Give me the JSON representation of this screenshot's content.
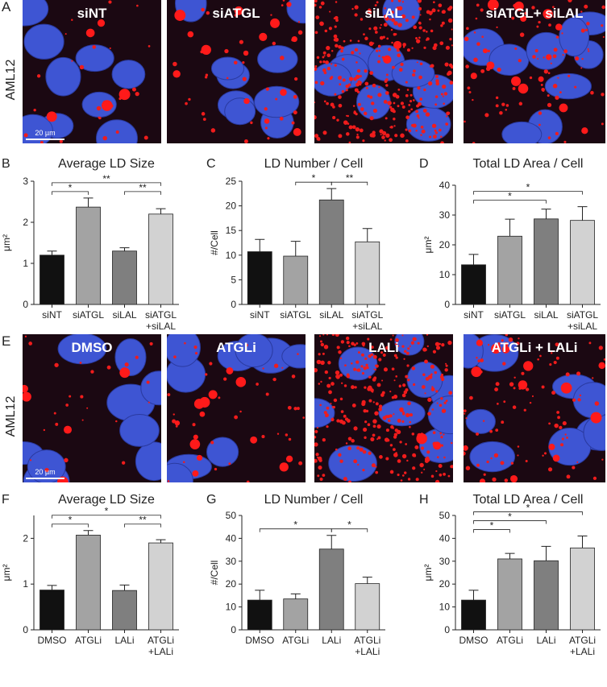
{
  "images": [
    {
      "panel_label": "A",
      "row_label": "AML12",
      "labels": [
        "siNT",
        "siATGL",
        "siLAL",
        "siATGL+ siLAL"
      ],
      "scale_bar": "20 µm"
    },
    {
      "panel_label": "E",
      "row_label": "AML12",
      "labels": [
        "DMSO",
        "ATGLi",
        "LALi",
        "ATGLi + LALi"
      ],
      "scale_bar": "20 µm"
    }
  ],
  "chart_data": [
    {
      "type": "bar",
      "panel_label": "B",
      "title": "Average LD Size",
      "ylabel": "μm²",
      "categories": [
        "siNT",
        "siATGL",
        "siLAL",
        [
          "siATGL",
          "+siLAL"
        ]
      ],
      "values": [
        1.2,
        2.37,
        1.3,
        2.2
      ],
      "errors": [
        0.1,
        0.22,
        0.08,
        0.13
      ],
      "colors": [
        "#111111",
        "#a3a3a3",
        "#7f7f7f",
        "#d2d2d2"
      ],
      "ylim": [
        0,
        3
      ],
      "yticks": [
        0,
        1,
        2,
        3
      ],
      "brackets": [
        {
          "label": "*",
          "between": [
            "siNT",
            "siATGL"
          ]
        },
        {
          "label": "**",
          "between": [
            "siLAL",
            [
              "siATGL",
              "+siLAL"
            ]
          ]
        },
        {
          "label": "**",
          "between": [
            "siNT",
            [
              "siATGL",
              "+siLAL"
            ]
          ]
        }
      ]
    },
    {
      "type": "bar",
      "panel_label": "C",
      "title": "LD Number / Cell",
      "ylabel": "#/Cell",
      "categories": [
        "siNT",
        "siATGL",
        "siLAL",
        [
          "siATGL",
          "+siLAL"
        ]
      ],
      "values": [
        10.7,
        9.8,
        21.2,
        12.7
      ],
      "errors": [
        2.5,
        3.0,
        2.3,
        2.7
      ],
      "colors": [
        "#111111",
        "#a3a3a3",
        "#7f7f7f",
        "#d2d2d2"
      ],
      "ylim": [
        0,
        25
      ],
      "yticks": [
        0,
        5,
        10,
        15,
        20,
        25
      ],
      "brackets": [
        {
          "label": "*",
          "between": [
            "siATGL",
            "siLAL"
          ]
        },
        {
          "label": "**",
          "between": [
            "siLAL",
            [
              "siATGL",
              "+siLAL"
            ]
          ]
        }
      ]
    },
    {
      "type": "bar",
      "panel_label": "D",
      "title": "Total LD Area / Cell",
      "ylabel": "μm²",
      "categories": [
        "siNT",
        "siATGL",
        "siLAL",
        [
          "siATGL",
          "+siLAL"
        ]
      ],
      "values": [
        13.3,
        22.9,
        28.7,
        28.2
      ],
      "errors": [
        3.5,
        5.7,
        3.3,
        4.6
      ],
      "colors": [
        "#111111",
        "#a3a3a3",
        "#7f7f7f",
        "#d2d2d2"
      ],
      "ylim": [
        0,
        40
      ],
      "yticks": [
        0,
        10,
        20,
        30,
        40
      ],
      "brackets": [
        {
          "label": "*",
          "between": [
            "siNT",
            "siLAL"
          ]
        },
        {
          "label": "*",
          "between": [
            "siNT",
            [
              "siATGL",
              "+siLAL"
            ]
          ]
        }
      ]
    },
    {
      "type": "bar",
      "panel_label": "F",
      "title": "Average LD Size",
      "ylabel": "μm²",
      "categories": [
        "DMSO",
        "ATGLi",
        "LALi",
        [
          "ATGLi",
          "+LALi"
        ]
      ],
      "values": [
        0.87,
        2.07,
        0.86,
        1.9
      ],
      "errors": [
        0.1,
        0.1,
        0.12,
        0.07
      ],
      "colors": [
        "#111111",
        "#a3a3a3",
        "#7f7f7f",
        "#d2d2d2"
      ],
      "ylim": [
        0,
        2.5
      ],
      "yticks": [
        0,
        1,
        2
      ],
      "brackets": [
        {
          "label": "*",
          "between": [
            "DMSO",
            "ATGLi"
          ]
        },
        {
          "label": "**",
          "between": [
            "LALi",
            [
              "ATGLi",
              "+LALi"
            ]
          ]
        },
        {
          "label": "*",
          "between": [
            "DMSO",
            [
              "ATGLi",
              "+LALi"
            ]
          ]
        }
      ]
    },
    {
      "type": "bar",
      "panel_label": "G",
      "title": "LD Number / Cell",
      "ylabel": "#/Cell",
      "categories": [
        "DMSO",
        "ATGLi",
        "LALi",
        [
          "ATGLi",
          "+LALi"
        ]
      ],
      "values": [
        13,
        13.5,
        35.3,
        20.2
      ],
      "errors": [
        4.3,
        2.2,
        6,
        2.8
      ],
      "colors": [
        "#111111",
        "#a3a3a3",
        "#7f7f7f",
        "#d2d2d2"
      ],
      "ylim": [
        0,
        50
      ],
      "yticks": [
        0,
        10,
        20,
        30,
        40,
        50
      ],
      "brackets": [
        {
          "label": "*",
          "between": [
            "DMSO",
            "LALi"
          ]
        },
        {
          "label": "*",
          "between": [
            "LALi",
            [
              "ATGLi",
              "+LALi"
            ]
          ]
        }
      ]
    },
    {
      "type": "bar",
      "panel_label": "H",
      "title": "Total LD Area / Cell",
      "ylabel": "μm²",
      "categories": [
        "DMSO",
        "ATGLi",
        "LALi",
        [
          "ATGLi",
          "+LALi"
        ]
      ],
      "values": [
        13,
        31,
        30.2,
        35.8
      ],
      "errors": [
        4.3,
        2.4,
        6.3,
        5.2
      ],
      "colors": [
        "#111111",
        "#a3a3a3",
        "#7f7f7f",
        "#d2d2d2"
      ],
      "ylim": [
        0,
        50
      ],
      "yticks": [
        0,
        10,
        20,
        30,
        40,
        50
      ],
      "brackets": [
        {
          "label": "*",
          "between": [
            "DMSO",
            "ATGLi"
          ]
        },
        {
          "label": "*",
          "between": [
            "DMSO",
            "LALi"
          ]
        },
        {
          "label": "*",
          "between": [
            "DMSO",
            [
              "ATGLi",
              "+LALi"
            ]
          ]
        }
      ]
    }
  ]
}
